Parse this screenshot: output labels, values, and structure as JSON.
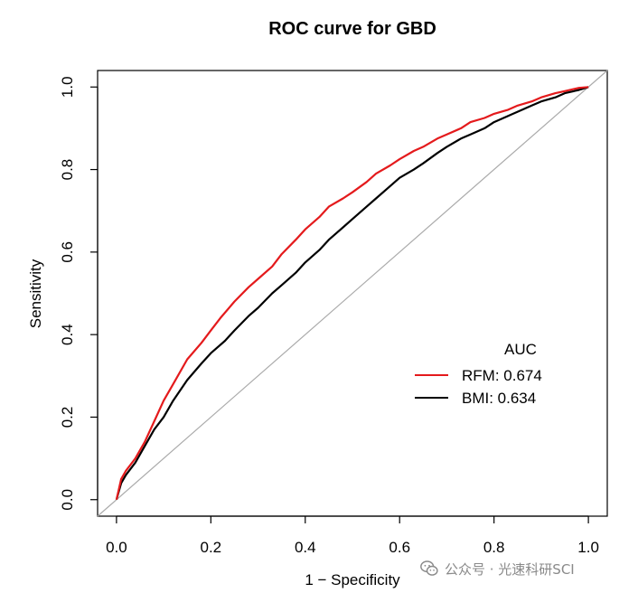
{
  "colors": {
    "rfm": "#e41a1c",
    "bmi": "#000000",
    "diagonal": "#aaaaaa",
    "axis": "#000000"
  },
  "watermark": {
    "text": "公众号 · 光速科研SCI",
    "icon": "wechat-icon"
  },
  "chart_data": {
    "type": "line",
    "title": "ROC curve for GBD",
    "xlabel": "1 − Specificity",
    "ylabel": "Sensitivity",
    "xlim": [
      -0.04,
      1.04
    ],
    "ylim": [
      -0.04,
      1.04
    ],
    "xticks": [
      0.0,
      0.2,
      0.4,
      0.6,
      0.8,
      1.0
    ],
    "yticks": [
      0.0,
      0.2,
      0.4,
      0.6,
      0.8,
      1.0
    ],
    "xtick_labels": [
      "0.0",
      "0.2",
      "0.4",
      "0.6",
      "0.8",
      "1.0"
    ],
    "ytick_labels": [
      "0.0",
      "0.2",
      "0.4",
      "0.6",
      "0.8",
      "1.0"
    ],
    "grid": false,
    "diagonal": {
      "x": [
        -0.04,
        1.04
      ],
      "y": [
        -0.04,
        1.04
      ]
    },
    "legend": {
      "title": "AUC",
      "placement": "lower-right",
      "entries": [
        "RFM: 0.674",
        "BMI: 0.634"
      ]
    },
    "series": [
      {
        "name": "RFM",
        "auc": 0.674,
        "x": [
          0.0,
          0.01,
          0.02,
          0.04,
          0.06,
          0.08,
          0.1,
          0.12,
          0.15,
          0.18,
          0.2,
          0.22,
          0.25,
          0.28,
          0.3,
          0.33,
          0.35,
          0.38,
          0.4,
          0.43,
          0.45,
          0.48,
          0.5,
          0.53,
          0.55,
          0.58,
          0.6,
          0.63,
          0.65,
          0.68,
          0.7,
          0.73,
          0.75,
          0.78,
          0.8,
          0.83,
          0.85,
          0.88,
          0.9,
          0.93,
          0.95,
          0.98,
          1.0
        ],
        "y": [
          0.0,
          0.05,
          0.07,
          0.1,
          0.14,
          0.19,
          0.24,
          0.28,
          0.34,
          0.38,
          0.41,
          0.44,
          0.48,
          0.515,
          0.535,
          0.565,
          0.595,
          0.63,
          0.655,
          0.685,
          0.71,
          0.73,
          0.745,
          0.77,
          0.79,
          0.81,
          0.825,
          0.845,
          0.855,
          0.875,
          0.885,
          0.9,
          0.915,
          0.925,
          0.935,
          0.945,
          0.955,
          0.965,
          0.975,
          0.985,
          0.99,
          0.998,
          1.0
        ]
      },
      {
        "name": "BMI",
        "auc": 0.634,
        "x": [
          0.0,
          0.01,
          0.02,
          0.04,
          0.06,
          0.08,
          0.1,
          0.12,
          0.15,
          0.18,
          0.2,
          0.23,
          0.25,
          0.28,
          0.3,
          0.33,
          0.35,
          0.38,
          0.4,
          0.43,
          0.45,
          0.48,
          0.5,
          0.53,
          0.55,
          0.58,
          0.6,
          0.63,
          0.65,
          0.68,
          0.7,
          0.73,
          0.75,
          0.78,
          0.8,
          0.83,
          0.85,
          0.88,
          0.9,
          0.93,
          0.95,
          0.98,
          1.0
        ],
        "y": [
          0.0,
          0.04,
          0.06,
          0.09,
          0.13,
          0.17,
          0.2,
          0.24,
          0.29,
          0.33,
          0.355,
          0.385,
          0.41,
          0.445,
          0.465,
          0.5,
          0.52,
          0.55,
          0.575,
          0.605,
          0.63,
          0.66,
          0.68,
          0.71,
          0.73,
          0.76,
          0.78,
          0.8,
          0.815,
          0.84,
          0.855,
          0.875,
          0.885,
          0.9,
          0.915,
          0.93,
          0.94,
          0.955,
          0.965,
          0.975,
          0.985,
          0.993,
          1.0
        ]
      }
    ]
  }
}
